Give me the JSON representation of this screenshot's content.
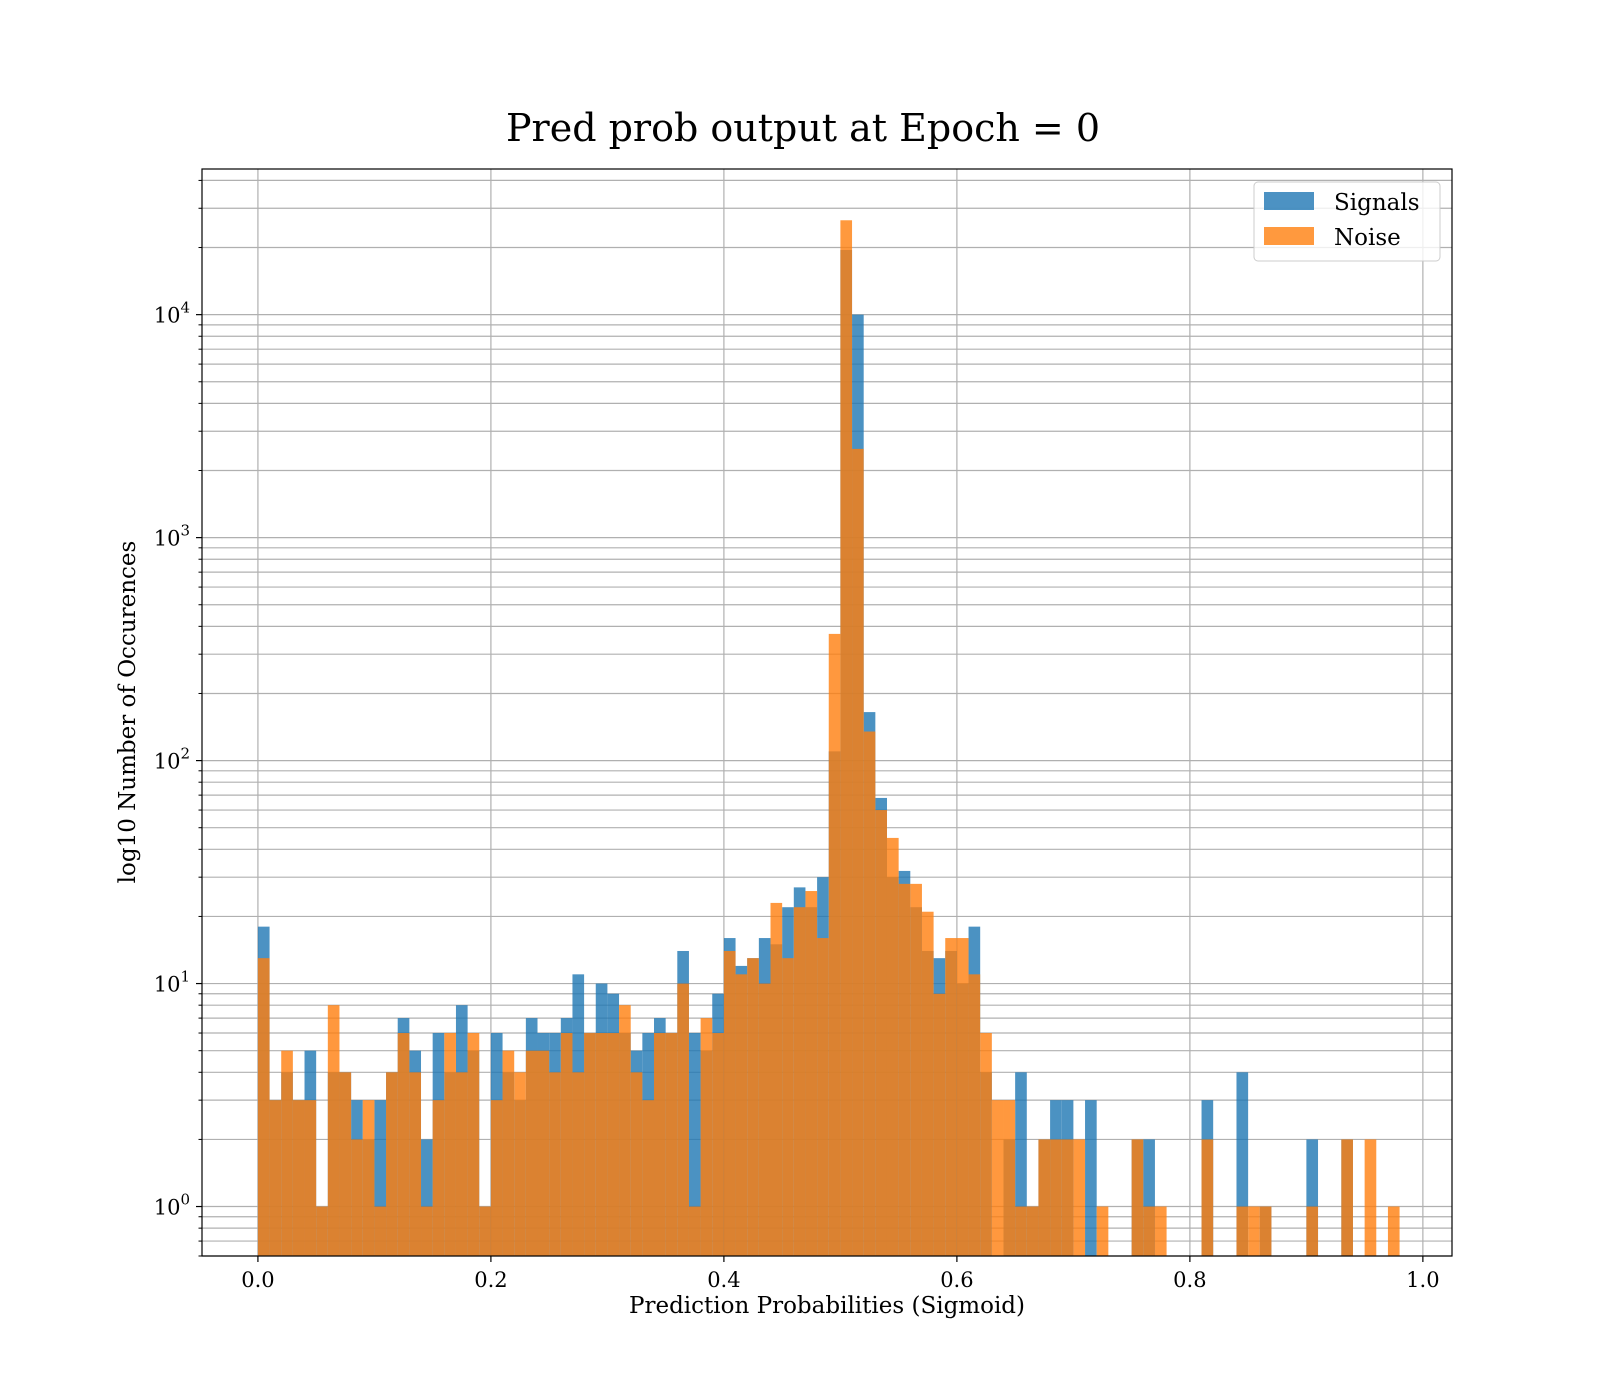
{
  "chart_data": {
    "type": "bar",
    "title": "Pred prob output at Epoch = 0",
    "xlabel": "Prediction Probabilities (Sigmoid)",
    "ylabel": "log10 Number of Occurences",
    "xlim": [
      -0.048,
      1.025
    ],
    "ylim": [
      0.6,
      45000
    ],
    "yscale": "log",
    "grid": true,
    "legend_position": "top-right",
    "bin_width": 0.01,
    "x_ticks": [
      "0.0",
      "0.2",
      "0.4",
      "0.6",
      "0.8",
      "1.0"
    ],
    "x_tick_values": [
      0.0,
      0.2,
      0.4,
      0.6,
      0.8,
      1.0
    ],
    "y_ticks": [
      {
        "base": "10",
        "exp": "0",
        "value": 1
      },
      {
        "base": "10",
        "exp": "1",
        "value": 10
      },
      {
        "base": "10",
        "exp": "2",
        "value": 100
      },
      {
        "base": "10",
        "exp": "3",
        "value": 1000
      },
      {
        "base": "10",
        "exp": "4",
        "value": 10000
      }
    ],
    "series": [
      {
        "name": "Signals",
        "color": "#1f77b4",
        "bins": [
          [
            0.0,
            18
          ],
          [
            0.01,
            3
          ],
          [
            0.02,
            4
          ],
          [
            0.03,
            3
          ],
          [
            0.04,
            5
          ],
          [
            0.05,
            1
          ],
          [
            0.06,
            4
          ],
          [
            0.07,
            4
          ],
          [
            0.08,
            3
          ],
          [
            0.09,
            2
          ],
          [
            0.1,
            3
          ],
          [
            0.11,
            4
          ],
          [
            0.12,
            7
          ],
          [
            0.13,
            5
          ],
          [
            0.14,
            2
          ],
          [
            0.15,
            6
          ],
          [
            0.16,
            4
          ],
          [
            0.17,
            8
          ],
          [
            0.18,
            5
          ],
          [
            0.19,
            1
          ],
          [
            0.2,
            6
          ],
          [
            0.21,
            4
          ],
          [
            0.22,
            3
          ],
          [
            0.23,
            7
          ],
          [
            0.24,
            6
          ],
          [
            0.25,
            6
          ],
          [
            0.26,
            7
          ],
          [
            0.27,
            11
          ],
          [
            0.28,
            6
          ],
          [
            0.29,
            10
          ],
          [
            0.3,
            9
          ],
          [
            0.31,
            6
          ],
          [
            0.32,
            5
          ],
          [
            0.33,
            6
          ],
          [
            0.34,
            7
          ],
          [
            0.35,
            6
          ],
          [
            0.36,
            14
          ],
          [
            0.37,
            6
          ],
          [
            0.38,
            5
          ],
          [
            0.39,
            9
          ],
          [
            0.4,
            16
          ],
          [
            0.41,
            12
          ],
          [
            0.42,
            13
          ],
          [
            0.43,
            16
          ],
          [
            0.44,
            15
          ],
          [
            0.45,
            22
          ],
          [
            0.46,
            27
          ],
          [
            0.47,
            22
          ],
          [
            0.48,
            30
          ],
          [
            0.49,
            110
          ],
          [
            0.5,
            19500
          ],
          [
            0.51,
            10000
          ],
          [
            0.52,
            165
          ],
          [
            0.53,
            68
          ],
          [
            0.54,
            30
          ],
          [
            0.55,
            32
          ],
          [
            0.56,
            22
          ],
          [
            0.57,
            14
          ],
          [
            0.58,
            13
          ],
          [
            0.59,
            14
          ],
          [
            0.6,
            10
          ],
          [
            0.61,
            18
          ],
          [
            0.62,
            4
          ],
          [
            0.63,
            0
          ],
          [
            0.64,
            2
          ],
          [
            0.65,
            4
          ],
          [
            0.66,
            1
          ],
          [
            0.67,
            2
          ],
          [
            0.68,
            3
          ],
          [
            0.69,
            3
          ],
          [
            0.7,
            0
          ],
          [
            0.71,
            3
          ],
          [
            0.72,
            0
          ],
          [
            0.73,
            0
          ],
          [
            0.74,
            0
          ],
          [
            0.75,
            2
          ],
          [
            0.76,
            2
          ],
          [
            0.77,
            0
          ],
          [
            0.78,
            0
          ],
          [
            0.79,
            0
          ],
          [
            0.8,
            0
          ],
          [
            0.81,
            3
          ],
          [
            0.82,
            0
          ],
          [
            0.83,
            0
          ],
          [
            0.84,
            4
          ],
          [
            0.85,
            0
          ],
          [
            0.86,
            1
          ],
          [
            0.87,
            0
          ],
          [
            0.88,
            0
          ],
          [
            0.89,
            0
          ],
          [
            0.9,
            2
          ],
          [
            0.91,
            0
          ],
          [
            0.92,
            0
          ],
          [
            0.93,
            2
          ],
          [
            0.94,
            0
          ],
          [
            0.95,
            0
          ],
          [
            0.96,
            0
          ],
          [
            0.97,
            0
          ]
        ]
      },
      {
        "name": "Noise",
        "color": "#ff7f0e",
        "bins": [
          [
            0.0,
            13
          ],
          [
            0.01,
            3
          ],
          [
            0.02,
            5
          ],
          [
            0.03,
            3
          ],
          [
            0.04,
            3
          ],
          [
            0.05,
            1
          ],
          [
            0.06,
            8
          ],
          [
            0.07,
            4
          ],
          [
            0.08,
            2
          ],
          [
            0.09,
            3
          ],
          [
            0.1,
            1
          ],
          [
            0.11,
            4
          ],
          [
            0.12,
            6
          ],
          [
            0.13,
            4
          ],
          [
            0.14,
            1
          ],
          [
            0.15,
            3
          ],
          [
            0.16,
            6
          ],
          [
            0.17,
            4
          ],
          [
            0.18,
            6
          ],
          [
            0.19,
            1
          ],
          [
            0.2,
            3
          ],
          [
            0.21,
            5
          ],
          [
            0.22,
            4
          ],
          [
            0.23,
            5
          ],
          [
            0.24,
            5
          ],
          [
            0.25,
            4
          ],
          [
            0.26,
            6
          ],
          [
            0.27,
            4
          ],
          [
            0.28,
            6
          ],
          [
            0.29,
            6
          ],
          [
            0.3,
            6
          ],
          [
            0.31,
            8
          ],
          [
            0.32,
            4
          ],
          [
            0.33,
            3
          ],
          [
            0.34,
            6
          ],
          [
            0.35,
            6
          ],
          [
            0.36,
            10
          ],
          [
            0.37,
            1
          ],
          [
            0.38,
            7
          ],
          [
            0.39,
            6
          ],
          [
            0.4,
            14
          ],
          [
            0.41,
            11
          ],
          [
            0.42,
            13
          ],
          [
            0.43,
            10
          ],
          [
            0.44,
            23
          ],
          [
            0.45,
            13
          ],
          [
            0.46,
            22
          ],
          [
            0.47,
            26
          ],
          [
            0.48,
            16
          ],
          [
            0.49,
            370
          ],
          [
            0.5,
            26500
          ],
          [
            0.51,
            2500
          ],
          [
            0.52,
            135
          ],
          [
            0.53,
            60
          ],
          [
            0.54,
            45
          ],
          [
            0.55,
            28
          ],
          [
            0.56,
            28
          ],
          [
            0.57,
            21
          ],
          [
            0.58,
            9
          ],
          [
            0.59,
            16
          ],
          [
            0.6,
            16
          ],
          [
            0.61,
            11
          ],
          [
            0.62,
            6
          ],
          [
            0.63,
            3
          ],
          [
            0.64,
            3
          ],
          [
            0.65,
            1
          ],
          [
            0.66,
            1
          ],
          [
            0.67,
            2
          ],
          [
            0.68,
            2
          ],
          [
            0.69,
            2
          ],
          [
            0.7,
            2
          ],
          [
            0.71,
            0
          ],
          [
            0.72,
            1
          ],
          [
            0.73,
            0
          ],
          [
            0.74,
            0
          ],
          [
            0.75,
            2
          ],
          [
            0.76,
            1
          ],
          [
            0.77,
            1
          ],
          [
            0.78,
            0
          ],
          [
            0.79,
            0
          ],
          [
            0.8,
            0
          ],
          [
            0.81,
            2
          ],
          [
            0.82,
            0
          ],
          [
            0.83,
            0
          ],
          [
            0.84,
            1
          ],
          [
            0.85,
            1
          ],
          [
            0.86,
            1
          ],
          [
            0.87,
            0
          ],
          [
            0.88,
            0
          ],
          [
            0.89,
            0
          ],
          [
            0.9,
            1
          ],
          [
            0.91,
            0
          ],
          [
            0.92,
            0
          ],
          [
            0.93,
            2
          ],
          [
            0.94,
            0
          ],
          [
            0.95,
            2
          ],
          [
            0.96,
            0
          ],
          [
            0.97,
            1
          ]
        ]
      }
    ]
  }
}
